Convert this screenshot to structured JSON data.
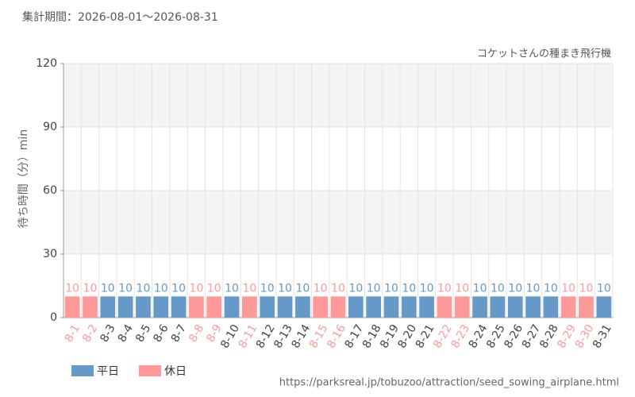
{
  "chart_data": {
    "type": "bar",
    "title": "集計期間：2026-08-01～2026-08-31",
    "subtitle": "コケットさんの種まき飛行機",
    "y_label": "待ち時間（分）min",
    "source": "https://parksreal.jp/tobuzoo/attraction/seed_sowing_airplane.html",
    "categories": [
      "8-1",
      "8-2",
      "8-3",
      "8-4",
      "8-5",
      "8-6",
      "8-7",
      "8-8",
      "8-9",
      "8-10",
      "8-11",
      "8-12",
      "8-13",
      "8-14",
      "8-15",
      "8-16",
      "8-17",
      "8-18",
      "8-19",
      "8-20",
      "8-21",
      "8-22",
      "8-23",
      "8-24",
      "8-25",
      "8-26",
      "8-27",
      "8-28",
      "8-29",
      "8-30",
      "8-31"
    ],
    "series": [
      {
        "name": "平日",
        "color": "#6699c8",
        "values": [
          null,
          null,
          10,
          10,
          10,
          10,
          10,
          null,
          null,
          10,
          null,
          10,
          10,
          10,
          null,
          null,
          10,
          10,
          10,
          10,
          10,
          null,
          null,
          10,
          10,
          10,
          10,
          10,
          null,
          null,
          10
        ]
      },
      {
        "name": "休日",
        "color": "#ff9999",
        "values": [
          10,
          10,
          null,
          null,
          null,
          null,
          null,
          10,
          10,
          null,
          10,
          null,
          null,
          null,
          10,
          10,
          null,
          null,
          null,
          null,
          null,
          10,
          10,
          null,
          null,
          null,
          null,
          null,
          10,
          10,
          null
        ]
      }
    ],
    "ylim": [
      0,
      120
    ],
    "yticks": [
      0,
      30,
      60,
      90,
      120
    ],
    "grid": true
  }
}
